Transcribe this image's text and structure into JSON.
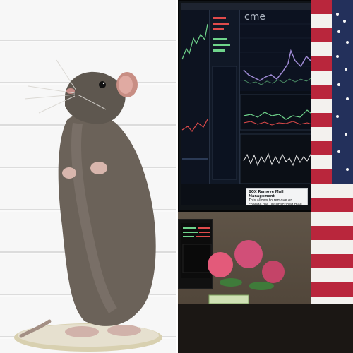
{
  "image": {
    "left_panel": {
      "alt": "Rat standing on hind legs"
    },
    "right_panel": {
      "alt": "Trading monitor with charts, flag, flowers and cash"
    }
  },
  "monitor": {
    "topbar_text": "",
    "logo_text": "cme",
    "dialog": {
      "title": "BOX Remove Mail Management",
      "body": "This allows to remove or change the unsubscribed mail from us using the ability to do the actions that receive the mails."
    }
  },
  "colors": {
    "fur": "#6b6259",
    "wall": "#f5f5f5",
    "screen_bg": "#0b0f16",
    "chart_purple": "#a08bd6",
    "chart_green": "#6fd48b",
    "chart_red": "#e04b4b",
    "flag_red": "#b9263c",
    "flag_blue": "#23305b",
    "roses": "#e35a7a"
  }
}
